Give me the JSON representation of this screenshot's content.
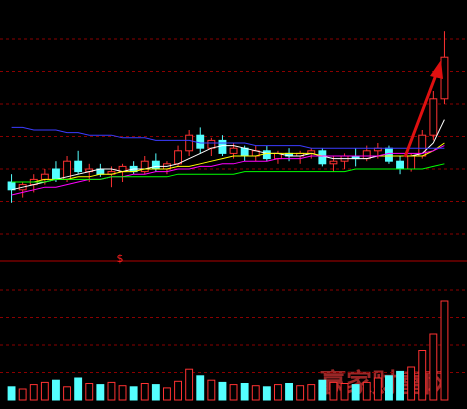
{
  "chart_data": {
    "type": "candlestick",
    "marker_text": "$",
    "watermark": "赢家财富网",
    "up_color": "#ff3232",
    "down_color": "#54ffff",
    "ylim": [
      0,
      100
    ],
    "yticks": [
      10,
      22.5,
      35,
      47.5,
      60,
      72.5,
      85
    ],
    "grid": true,
    "open": [
      30,
      27,
      29,
      31,
      35,
      31,
      38,
      34,
      35,
      33,
      34,
      36,
      34,
      38,
      35,
      37,
      42,
      48,
      43,
      46,
      41,
      43,
      40,
      42,
      39,
      41,
      40,
      41,
      42,
      37,
      38,
      40,
      39,
      42,
      43,
      38,
      35,
      40,
      48,
      62
    ],
    "high": [
      33,
      30,
      33,
      35,
      38,
      40,
      42,
      37,
      37,
      36,
      37,
      38,
      40,
      41,
      38,
      44,
      50,
      51,
      47,
      48,
      45,
      44,
      44,
      44,
      42,
      43,
      42,
      43,
      43,
      40,
      41,
      43,
      44,
      45,
      44,
      40,
      41,
      50,
      65,
      88
    ],
    "low": [
      22,
      24,
      26,
      29,
      30,
      30,
      33,
      30,
      32,
      28,
      30,
      33,
      33,
      34,
      33,
      36,
      40,
      41,
      40,
      40,
      39,
      38,
      38,
      38,
      37,
      38,
      37,
      39,
      36,
      34,
      35,
      36,
      38,
      39,
      37,
      33,
      34,
      39,
      46,
      60
    ],
    "close": [
      27,
      29,
      31,
      33,
      31,
      38,
      34,
      35,
      33,
      34,
      36,
      34,
      38,
      35,
      37,
      42,
      48,
      43,
      46,
      41,
      43,
      40,
      42,
      39,
      41,
      40,
      41,
      42,
      37,
      38,
      40,
      39,
      42,
      43,
      38,
      35,
      40,
      48,
      62,
      78
    ],
    "series": [
      {
        "color": "#ffffff",
        "values": [
          27,
          28,
          29,
          30,
          31,
          32,
          33,
          34,
          35,
          35,
          34,
          35,
          35,
          36,
          36,
          37,
          39,
          41,
          43,
          44,
          44,
          43,
          42,
          41,
          41,
          40,
          40,
          41,
          40,
          39,
          39,
          39,
          39,
          40,
          40,
          40,
          40,
          41,
          45,
          54
        ]
      },
      {
        "color": "#ffff00",
        "values": [
          30,
          30,
          30,
          31,
          31,
          31,
          32,
          32,
          33,
          33,
          34,
          34,
          35,
          35,
          35,
          36,
          36,
          37,
          38,
          39,
          40,
          40,
          40,
          41,
          41,
          41,
          41,
          41,
          40,
          40,
          40,
          40,
          40,
          40,
          40,
          40,
          40,
          40,
          42,
          45
        ]
      },
      {
        "color": "#ff00ff",
        "values": [
          25,
          26,
          27,
          28,
          28,
          29,
          30,
          31,
          31,
          32,
          32,
          33,
          33,
          34,
          34,
          35,
          35,
          36,
          36,
          37,
          37,
          38,
          38,
          38,
          39,
          39,
          39,
          40,
          40,
          40,
          40,
          40,
          40,
          40,
          41,
          41,
          41,
          41,
          42,
          44
        ]
      },
      {
        "color": "#00ff00",
        "values": [
          30,
          30,
          30,
          30,
          31,
          31,
          31,
          31,
          31,
          32,
          32,
          32,
          32,
          32,
          32,
          33,
          33,
          33,
          33,
          33,
          33,
          34,
          34,
          34,
          34,
          34,
          34,
          34,
          34,
          34,
          34,
          35,
          35,
          35,
          35,
          35,
          35,
          35,
          36,
          37
        ]
      },
      {
        "color": "#3c3cff",
        "values": [
          51,
          51,
          50,
          50,
          50,
          49,
          49,
          48,
          48,
          48,
          47,
          47,
          47,
          46,
          46,
          46,
          46,
          45,
          45,
          45,
          45,
          45,
          44,
          44,
          44,
          44,
          44,
          43,
          43,
          43,
          43,
          43,
          43,
          43,
          43,
          43,
          43,
          43,
          43,
          43
        ]
      }
    ],
    "volume": [
      12,
      10,
      14,
      16,
      18,
      12,
      20,
      15,
      14,
      16,
      13,
      12,
      15,
      14,
      11,
      17,
      28,
      22,
      18,
      16,
      14,
      15,
      13,
      12,
      14,
      15,
      13,
      14,
      18,
      16,
      15,
      14,
      16,
      20,
      22,
      26,
      30,
      45,
      60,
      90
    ],
    "volume_ylim": [
      0,
      100
    ],
    "volume_ticks": [
      25,
      50,
      75,
      100
    ]
  }
}
